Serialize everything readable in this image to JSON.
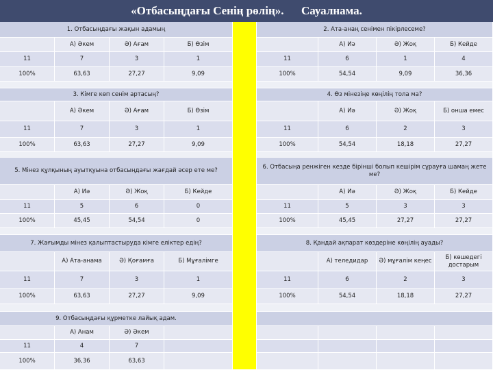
{
  "title": "«Отбасыңдағы Сенің рөлің».      Сауалнама.",
  "blocks": [
    {
      "left": {
        "question": "1. Отбасыңдағы жақын адамың",
        "options": [
          "А) Әкем",
          "Ә) Ағам",
          "Б) Өзім"
        ],
        "counts": [
          "11",
          "7",
          "3",
          "1"
        ],
        "percents": [
          "100%",
          "63,63",
          "27,27",
          "9,09"
        ]
      },
      "right": {
        "question": "2. Ата-анаң сенімен пікірлесеме?",
        "options": [
          "А) Иә",
          "Ә) Жоқ",
          "Б) Кейде"
        ],
        "counts": [
          "11",
          "6",
          "1",
          "4"
        ],
        "percents": [
          "100%",
          "54,54",
          "9,09",
          "36,36"
        ]
      }
    },
    {
      "left": {
        "question": "3. Кімге көп сенім артасың?",
        "options": [
          "А) Әкем",
          "Ә) Ағам",
          "Б) Өзім"
        ],
        "counts": [
          "11",
          "7",
          "3",
          "1"
        ],
        "percents": [
          "100%",
          "63,63",
          "27,27",
          "9,09"
        ]
      },
      "right": {
        "question": "4. Өз мінезіңе көңілің тола ма?",
        "options": [
          "А) Иә",
          "Ә) Жоқ",
          "Б) онша емес"
        ],
        "counts": [
          "11",
          "6",
          "2",
          "3"
        ],
        "percents": [
          "100%",
          "54,54",
          "18,18",
          "27,27"
        ]
      }
    },
    {
      "left": {
        "question": "5. Мінез құлқының ауытқуына отбасыңдағы жағдай әсер ете ме?",
        "options": [
          "А) Иә",
          "Ә) Жоқ",
          "Б) Кейде"
        ],
        "counts": [
          "11",
          "5",
          "6",
          "0"
        ],
        "percents": [
          "100%",
          "45,45",
          "54,54",
          "0"
        ]
      },
      "right": {
        "question": "6. Отбасыңа ренжіген кезде бірінші болып кешірім сұрауға шамаң жете ме?",
        "options": [
          "А) Иә",
          "Ә) Жоқ",
          "Б) Кейде"
        ],
        "counts": [
          "11",
          "5",
          "3",
          "3"
        ],
        "percents": [
          "100%",
          "45,45",
          "27,27",
          "27,27"
        ]
      }
    },
    {
      "left": {
        "question": "7. Жағымды мінез қалыптастыруда кімге еліктер едің?",
        "options": [
          "А) Ата-анама",
          "Ә) Қоғамға",
          "Б) Мұғалімге"
        ],
        "counts": [
          "11",
          "7",
          "3",
          "1"
        ],
        "percents": [
          "100%",
          "63,63",
          "27,27",
          "9,09"
        ]
      },
      "right": {
        "question": "8. Қандай ақпарат көздеріне көңілің ауады?",
        "options": [
          "А) теледидар",
          "Ә) мұғалім кеңес",
          "Б) көшедегі достарым"
        ],
        "counts": [
          "11",
          "6",
          "2",
          "3"
        ],
        "percents": [
          "100%",
          "54,54",
          "18,18",
          "27,27"
        ]
      }
    },
    {
      "left": {
        "question": "9. Отбасыңдағы құрметке лайық адам.",
        "options": [
          "А) Анам",
          "Ә) Әкем"
        ],
        "counts": [
          "11",
          "4",
          "7"
        ],
        "percents": [
          "100%",
          "36,36",
          "63,63"
        ]
      }
    }
  ]
}
